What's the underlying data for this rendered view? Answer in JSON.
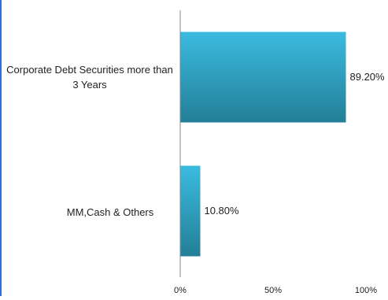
{
  "chart_data": {
    "type": "bar",
    "orientation": "horizontal",
    "categories": [
      "Corporate Debt Securities more than 3 Years",
      "MM,Cash & Others"
    ],
    "values": [
      89.2,
      10.8
    ],
    "data_labels": [
      "89.20%",
      "10.80%"
    ],
    "xlim": [
      0,
      100
    ],
    "xticks": [
      "0%",
      "50%",
      "100%"
    ],
    "title": "",
    "xlabel": "",
    "ylabel": "",
    "grid": false,
    "colors": {
      "bar_top": "#3bbbe0",
      "bar_bottom": "#237f97",
      "axis": "#888888",
      "left_edge": "#2f6fd6"
    }
  }
}
